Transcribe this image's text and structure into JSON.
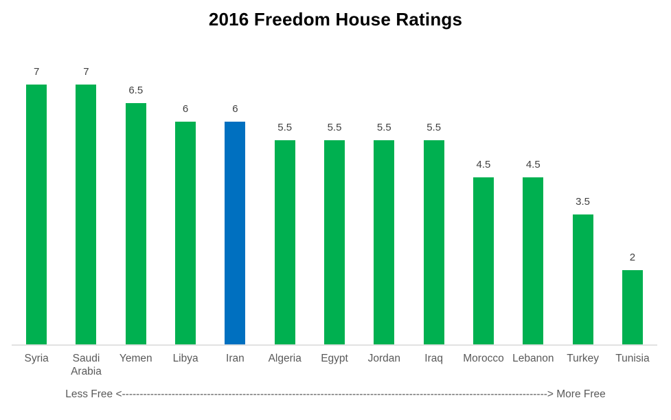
{
  "chart_data": {
    "type": "bar",
    "title": "2016 Freedom House Ratings",
    "categories": [
      "Syria",
      "Saudi Arabia",
      "Yemen",
      "Libya",
      "Iran",
      "Algeria",
      "Egypt",
      "Jordan",
      "Iraq",
      "Morocco",
      "Lebanon",
      "Turkey",
      "Tunisia"
    ],
    "values": [
      7,
      7,
      6.5,
      6,
      6,
      5.5,
      5.5,
      5.5,
      5.5,
      4.5,
      4.5,
      3.5,
      2
    ],
    "data_labels": [
      "7",
      "7",
      "6.5",
      "6",
      "6",
      "5.5",
      "5.5",
      "5.5",
      "5.5",
      "4.5",
      "4.5",
      "3.5",
      "2"
    ],
    "highlighted_category": "Iran",
    "bar_colors": {
      "default": "#00B050",
      "highlight": "#0070C0"
    },
    "xlabel": "",
    "ylabel": "",
    "ylim": [
      0,
      7
    ],
    "gridlines": false,
    "legend_position": "none",
    "axis_line_color": "#e2e2e2",
    "data_label_color": "#404040",
    "category_label_color": "#595959",
    "annotation": "Less Free <------------------------------------------------------------------------------------------------------------------------> More Free"
  }
}
